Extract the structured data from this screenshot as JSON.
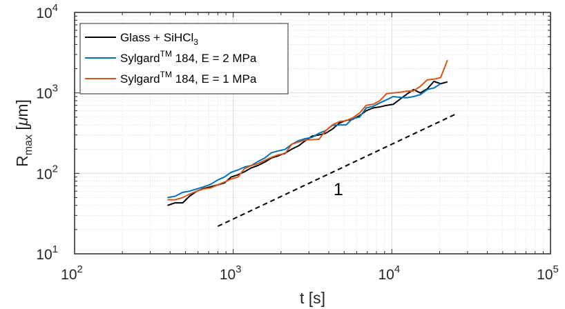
{
  "chart_data": {
    "type": "line",
    "x_scale": "log",
    "y_scale": "log",
    "xlim": [
      100,
      100000
    ],
    "ylim": [
      10,
      10000
    ],
    "grid": true,
    "minor_grid": true,
    "legend_position": "top-left",
    "title": "",
    "xlabel": "t [s]",
    "ylabel": {
      "base": "R",
      "sub": "max",
      "rest": " [",
      "greek": "μ",
      "unit": "m]"
    },
    "x_ticks": [
      {
        "base": "10",
        "exp": "2"
      },
      {
        "base": "10",
        "exp": "3"
      },
      {
        "base": "10",
        "exp": "4"
      },
      {
        "base": "10",
        "exp": "5"
      }
    ],
    "y_ticks": [
      {
        "base": "10",
        "exp": "1"
      },
      {
        "base": "10",
        "exp": "2"
      },
      {
        "base": "10",
        "exp": "3"
      },
      {
        "base": "10",
        "exp": "4"
      }
    ],
    "series": [
      {
        "name": "Glass + SiHCl3",
        "legend": {
          "pre": "Glass + SiHCl",
          "sub": "3",
          "post": ""
        },
        "color": "#000000",
        "x": [
          385,
          430,
          480,
          530,
          590,
          650,
          720,
          800,
          880,
          970,
          1070,
          1180,
          1300,
          1430,
          1580,
          1740,
          1920,
          2120,
          2340,
          2580,
          2850,
          3140,
          3470,
          3830,
          4220,
          4660,
          5140,
          5670,
          6260,
          6900,
          7620,
          8400,
          9270,
          10200,
          11300,
          12400,
          13700,
          15100,
          16700,
          18400,
          20300,
          22400
        ],
        "y": [
          40,
          43,
          43,
          52,
          60,
          65,
          68,
          72,
          76,
          90,
          96,
          105,
          117,
          125,
          138,
          155,
          165,
          178,
          200,
          220,
          255,
          290,
          300,
          315,
          355,
          420,
          455,
          470,
          520,
          600,
          650,
          670,
          700,
          720,
          840,
          960,
          1100,
          1000,
          1120,
          1390,
          1300,
          1370
        ]
      },
      {
        "name": "SylgardTM 184, E = 2 MPa",
        "legend": {
          "pre": "Sylgard",
          "sup": "TM",
          "post": " 184, E = 2 MPa"
        },
        "color": "#0072BD",
        "x": [
          385,
          430,
          480,
          530,
          590,
          650,
          720,
          800,
          880,
          970,
          1070,
          1180,
          1300,
          1430,
          1580,
          1740,
          1920,
          2120,
          2340,
          2580,
          2850,
          3140,
          3470,
          3830,
          4220,
          4660,
          5140,
          5670,
          6260,
          6900,
          7620,
          8400,
          9270,
          10200,
          11300,
          12400,
          13700,
          15100,
          16700,
          18400,
          20300
        ],
        "y": [
          50,
          52,
          58,
          60,
          64,
          68,
          73,
          83,
          90,
          103,
          110,
          120,
          125,
          140,
          155,
          180,
          190,
          198,
          230,
          255,
          270,
          280,
          315,
          340,
          395,
          400,
          400,
          480,
          500,
          650,
          680,
          750,
          820,
          900,
          880,
          870,
          900,
          950,
          1100,
          1150,
          1300
        ]
      },
      {
        "name": "SylgardTM 184, E = 1 MPa",
        "legend": {
          "pre": "Sylgard",
          "sup": "TM",
          "post": " 184, E = 1 MPa"
        },
        "color": "#D95319",
        "x": [
          385,
          430,
          480,
          530,
          590,
          650,
          720,
          800,
          880,
          970,
          1070,
          1180,
          1300,
          1430,
          1580,
          1740,
          1920,
          2120,
          2340,
          2580,
          2850,
          3140,
          3470,
          3830,
          4220,
          4660,
          5140,
          5670,
          6260,
          6900,
          7620,
          8400,
          9270,
          10200,
          11300,
          12400,
          13700,
          15100,
          16700,
          18400,
          20300,
          22400
        ],
        "y": [
          47,
          47,
          50,
          55,
          60,
          64,
          66,
          72,
          78,
          85,
          90,
          115,
          125,
          132,
          145,
          158,
          170,
          175,
          230,
          245,
          260,
          262,
          265,
          340,
          400,
          440,
          450,
          490,
          560,
          700,
          720,
          800,
          980,
          1000,
          1020,
          1050,
          1060,
          1200,
          1450,
          1480,
          1550,
          2550
        ]
      }
    ],
    "reference_line": {
      "x": [
        800,
        25000
      ],
      "y": [
        22,
        540
      ],
      "style": "dashed",
      "color": "#000000",
      "label": "1",
      "label_position": {
        "x": 4600,
        "y": 64
      }
    }
  }
}
